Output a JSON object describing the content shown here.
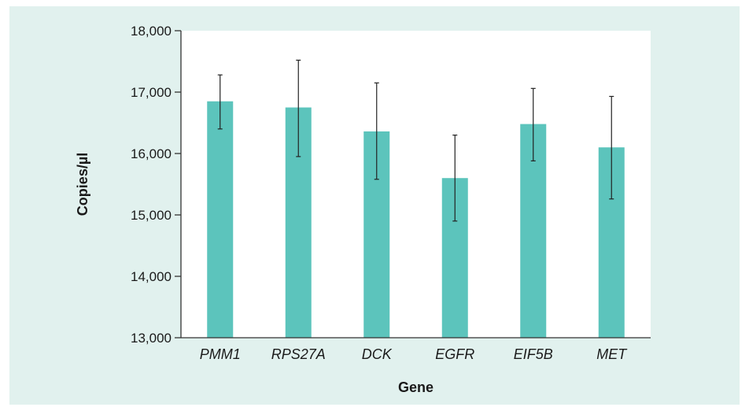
{
  "colors": {
    "background_panel": "#e1f1ee",
    "plot_area": "#ffffff",
    "bar": "#5cc4bc",
    "axis": "#333333",
    "error_bar": "#222222"
  },
  "chart_data": {
    "type": "bar",
    "title": "",
    "xlabel": "Gene",
    "ylabel": "Copies/µl",
    "ylim": [
      13000,
      18000
    ],
    "y_ticks": [
      13000,
      14000,
      15000,
      16000,
      17000,
      18000
    ],
    "y_tick_labels": [
      "13,000",
      "14,000",
      "15,000",
      "16,000",
      "17,000",
      "18,000"
    ],
    "grid": false,
    "legend": "none",
    "categories": [
      "PMM1",
      "RPS27A",
      "DCK",
      "EGFR",
      "EIF5B",
      "MET"
    ],
    "series": [
      {
        "values": [
          16850,
          16750,
          16360,
          15600,
          16480,
          16100
        ],
        "error_low": [
          16400,
          15950,
          15580,
          14900,
          15880,
          15260
        ],
        "error_high": [
          17280,
          17520,
          17150,
          16300,
          17060,
          16930
        ]
      }
    ]
  }
}
